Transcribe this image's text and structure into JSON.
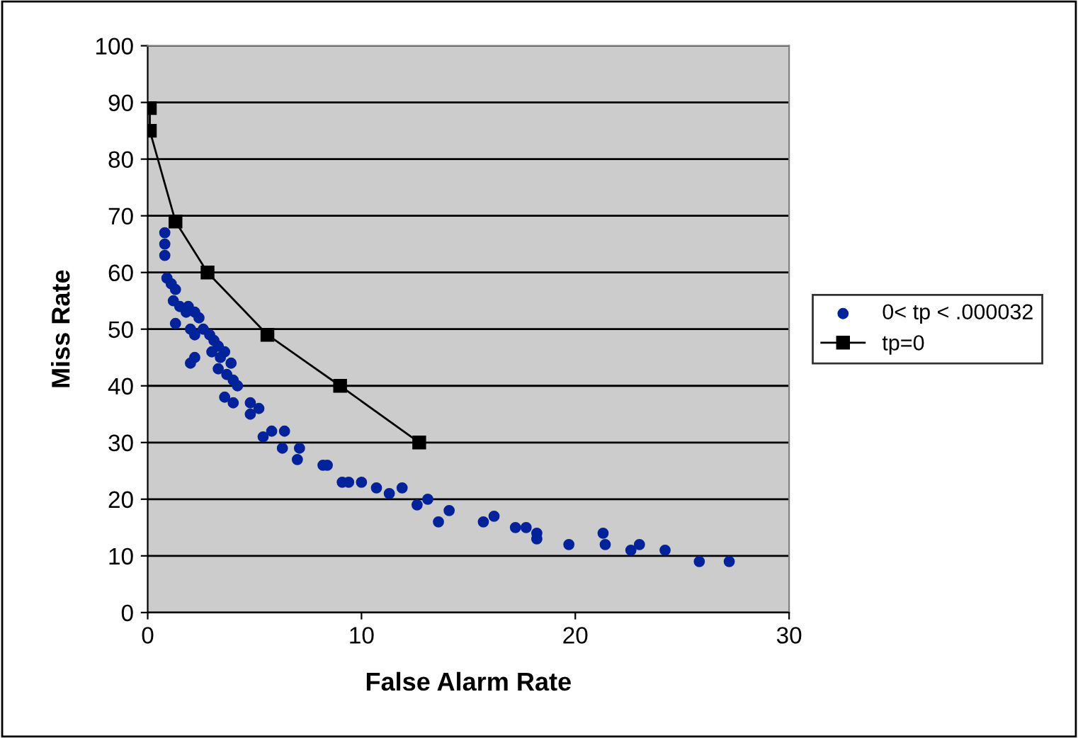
{
  "chart_data": {
    "type": "scatter",
    "xlabel": "False Alarm Rate",
    "ylabel": "Miss Rate",
    "xlim": [
      0,
      30
    ],
    "xticks": [
      0,
      10,
      20,
      30
    ],
    "ylim": [
      0,
      100
    ],
    "yticks": [
      0,
      10,
      20,
      30,
      40,
      50,
      60,
      70,
      80,
      90,
      100
    ],
    "grid": "y",
    "legend": "right",
    "series": [
      {
        "name": "0< tp < .000032",
        "color": "#00229a",
        "marker": "circle",
        "x": [
          0.8,
          0.8,
          0.8,
          0.9,
          1.1,
          1.3,
          1.2,
          1.5,
          1.8,
          1.9,
          1.3,
          2.2,
          2.4,
          2.0,
          2.2,
          2.6,
          2.9,
          3.1,
          3.3,
          3.0,
          3.4,
          3.3,
          3.6,
          3.9,
          2.2,
          2.0,
          3.7,
          4.0,
          4.2,
          3.6,
          4.0,
          4.8,
          4.8,
          5.2,
          5.4,
          5.8,
          6.4,
          6.3,
          7.1,
          7.0,
          8.2,
          8.4,
          9.1,
          9.4,
          10.0,
          10.7,
          11.3,
          11.9,
          12.6,
          13.1,
          13.6,
          14.1,
          15.7,
          16.2,
          17.2,
          17.7,
          18.2,
          18.2,
          19.7,
          21.3,
          21.4,
          22.6,
          23.0,
          24.2,
          25.8,
          27.2
        ],
        "values": [
          67,
          65,
          63,
          59,
          58,
          57,
          55,
          54,
          53,
          54,
          51,
          53,
          52,
          50,
          49,
          50,
          49,
          48,
          47,
          46,
          45,
          43,
          46,
          44,
          45,
          44,
          42,
          41,
          40,
          38,
          37,
          37,
          35,
          36,
          31,
          32,
          32,
          29,
          29,
          27,
          26,
          26,
          23,
          23,
          23,
          22,
          21,
          22,
          19,
          20,
          16,
          18,
          16,
          17,
          15,
          15,
          14,
          13,
          12,
          14,
          12,
          11,
          12,
          11,
          9,
          9
        ]
      },
      {
        "name": "tp=0",
        "type": "line",
        "color": "#000000",
        "marker": "square",
        "line_style": "solid",
        "x": [
          0.1,
          0.1,
          1.3,
          2.8,
          5.6,
          9.0,
          12.7
        ],
        "values": [
          89,
          85,
          69,
          60,
          49,
          40,
          30
        ]
      }
    ]
  }
}
